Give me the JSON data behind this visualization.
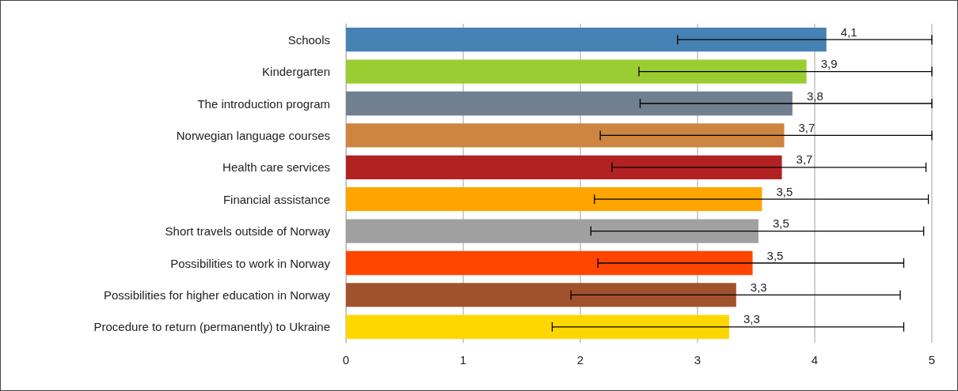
{
  "chart_data": {
    "type": "bar",
    "orientation": "horizontal",
    "categories": [
      "Schools",
      "Kindergarten",
      "The introduction program",
      "Norwegian language courses",
      "Health care services",
      "Financial assistance",
      "Short travels outside of Norway",
      "Possibilities to work in Norway",
      "Possibilities for higher education in Norway",
      "Procedure to return (permanently) to Ukraine"
    ],
    "values": [
      4.1,
      3.93,
      3.81,
      3.74,
      3.72,
      3.55,
      3.52,
      3.47,
      3.33,
      3.27
    ],
    "colors": [
      "#4682b4",
      "#9acd32",
      "#708090",
      "#cd853f",
      "#b22222",
      "#ffa500",
      "#a0a0a0",
      "#ff4500",
      "#a0522d",
      "#ffd700"
    ],
    "value_labels": [
      "4,1",
      "3,9",
      "3,8",
      "3,7",
      "3,7",
      "3,5",
      "3,5",
      "3,5",
      "3,3",
      "3,3"
    ],
    "errors": [
      [
        2.83,
        5
      ],
      [
        2.5,
        5
      ],
      [
        2.51,
        5
      ],
      [
        2.17,
        5
      ],
      [
        2.27,
        4.95
      ],
      [
        2.12,
        4.97
      ],
      [
        2.09,
        4.93
      ],
      [
        2.15,
        4.76
      ],
      [
        1.92,
        4.73
      ],
      [
        1.76,
        4.76
      ]
    ],
    "xlim": [
      0,
      5
    ],
    "xticks": [
      0,
      1,
      2,
      3,
      4,
      5
    ],
    "grid": "x"
  }
}
